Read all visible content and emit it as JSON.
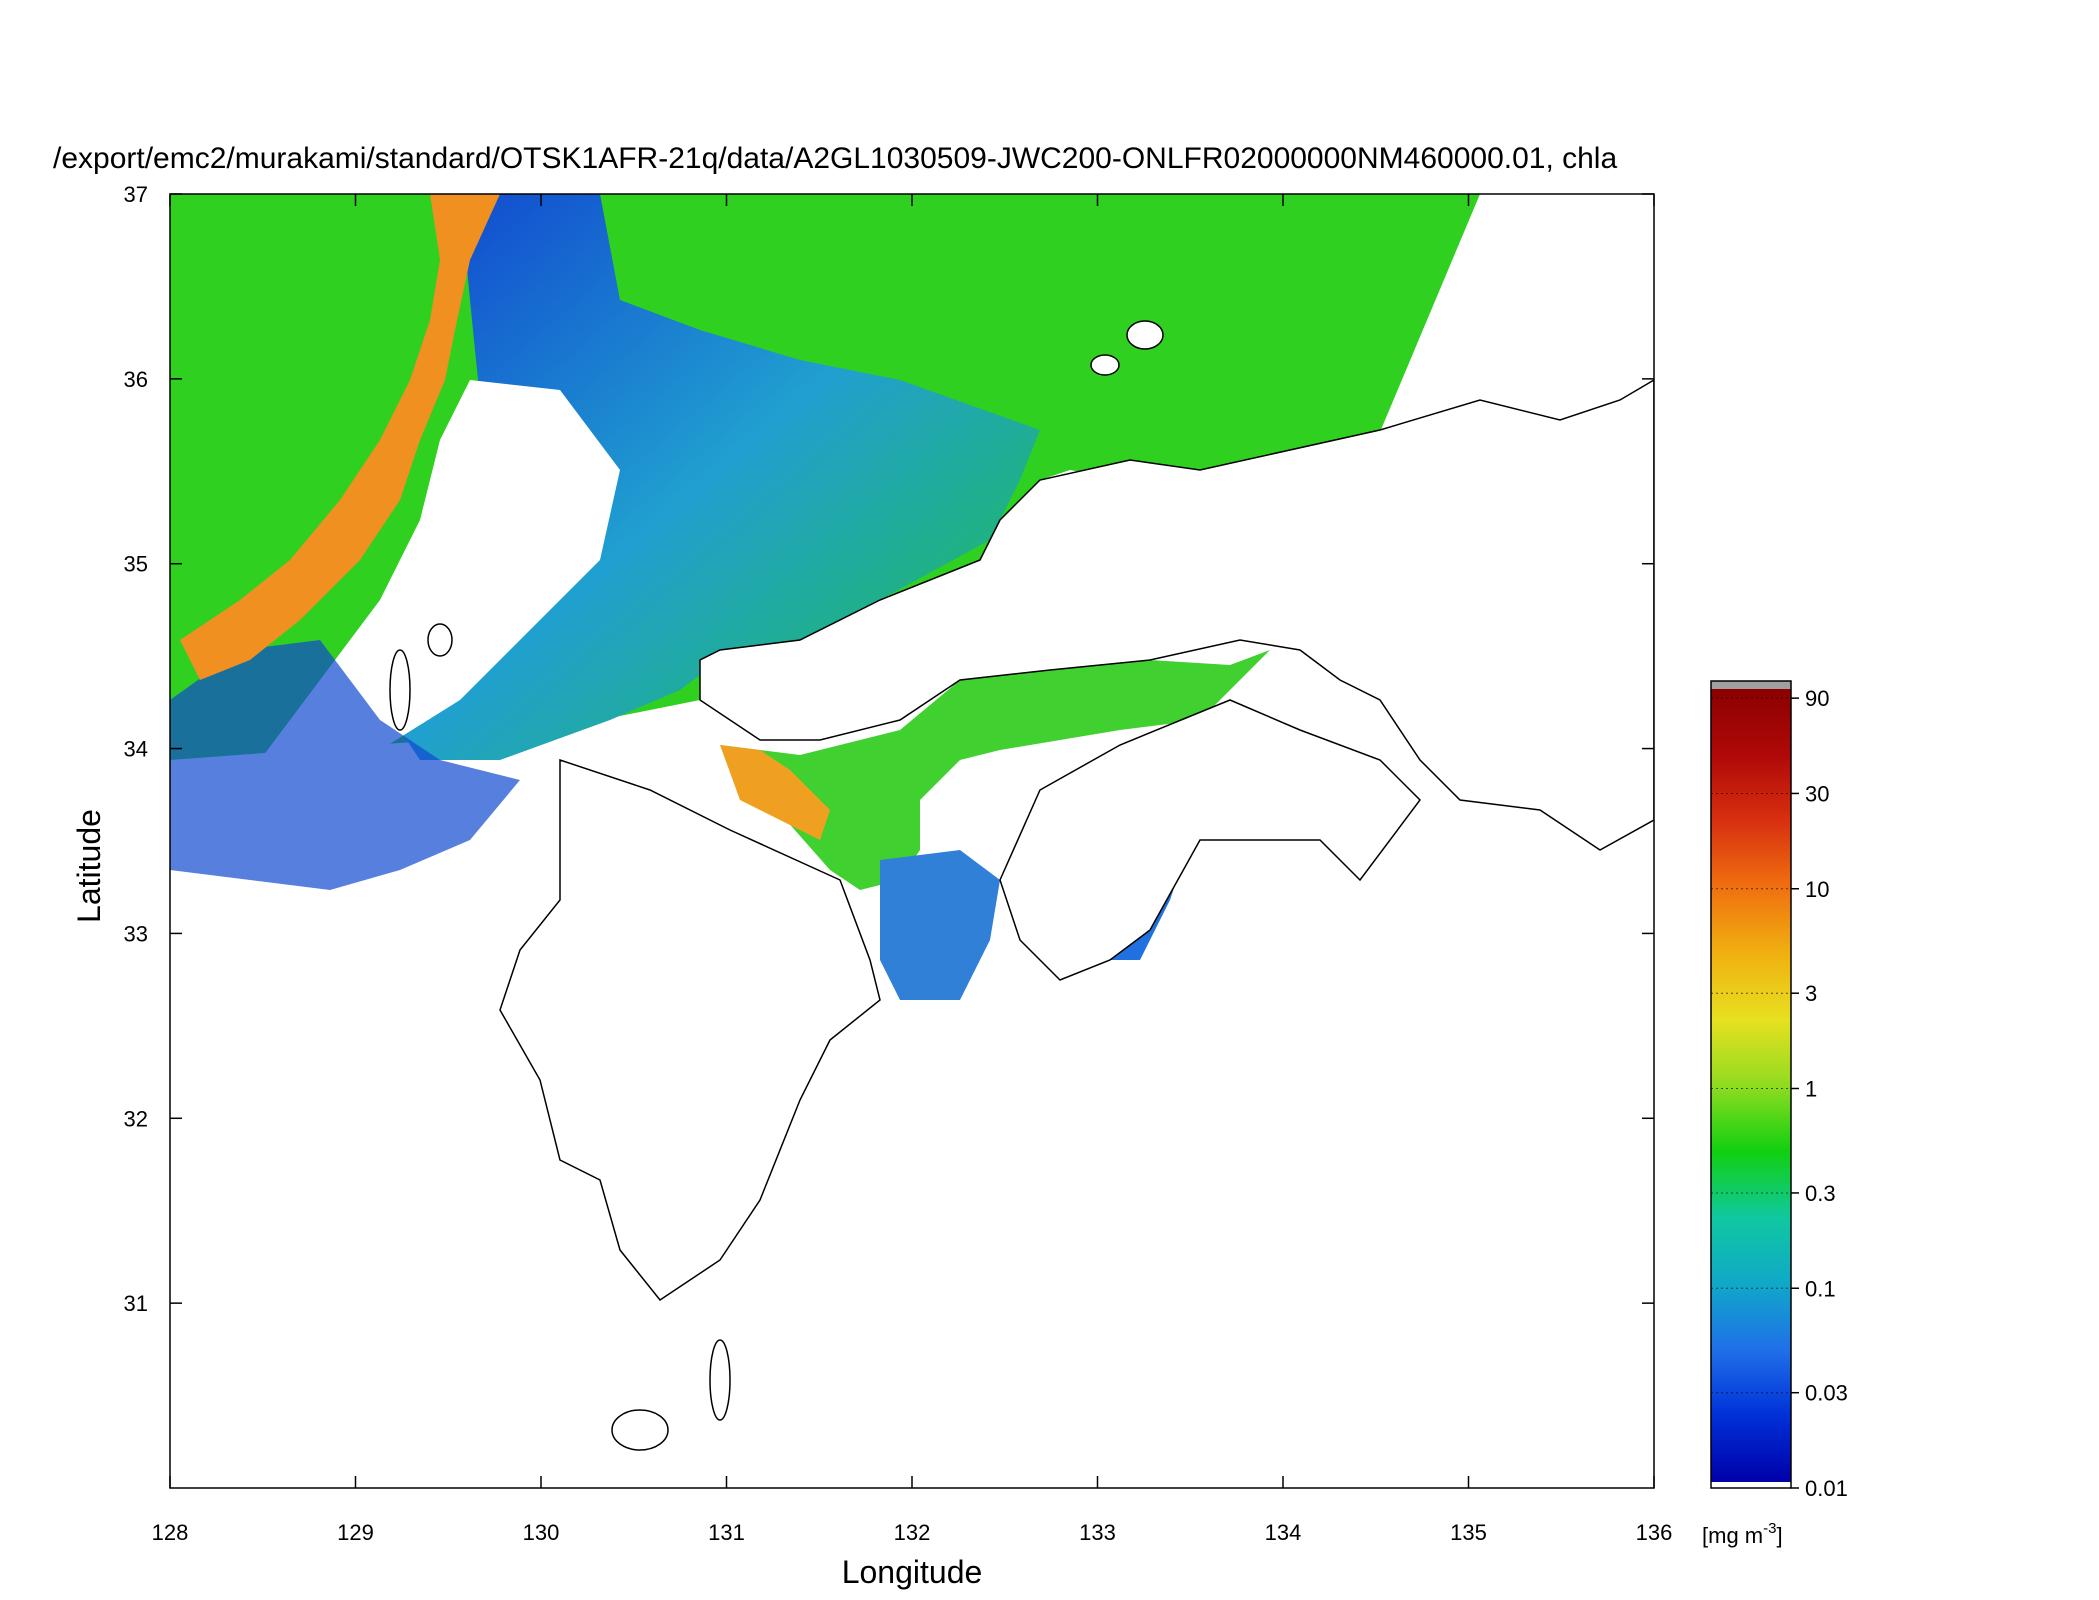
{
  "title": "/export/emc2/murakami/standard/OTSK1AFR-21q/data/A2GL1030509-JWC200-ONLFR02000000NM460000.01, chla",
  "map": {
    "xlabel": "Longitude",
    "ylabel": "Latitude",
    "x_ticks": [
      "128",
      "129",
      "130",
      "131",
      "132",
      "133",
      "134",
      "135",
      "136"
    ],
    "y_ticks": [
      "31",
      "32",
      "33",
      "34",
      "35",
      "36",
      "37"
    ],
    "xlim": [
      128,
      136
    ],
    "ylim": [
      30,
      37
    ],
    "variable": "chla"
  },
  "colorbar": {
    "scale": "log",
    "unit": "[mg m-3]",
    "unit_base": "[mg m",
    "unit_exp": "-3",
    "unit_close": "]",
    "ticks": [
      "90",
      "30",
      "10",
      "3",
      "1",
      "0.3",
      "0.1",
      "0.03",
      "0.01"
    ],
    "tick_values": [
      90,
      30,
      10,
      3,
      1,
      0.3,
      0.1,
      0.03,
      0.01
    ],
    "colors": [
      "#0000a8",
      "#0030d8",
      "#2070e8",
      "#10a8c8",
      "#10c8a0",
      "#10d010",
      "#90dc20",
      "#e8e020",
      "#f0b010",
      "#f07010",
      "#d83010",
      "#b00808",
      "#8c0000"
    ],
    "above_color": "#a0a0a0",
    "below_color": "#ffffff"
  },
  "colors": {
    "land_outline": "#000000",
    "frame": "#000000",
    "no_data": "#ffffff"
  }
}
